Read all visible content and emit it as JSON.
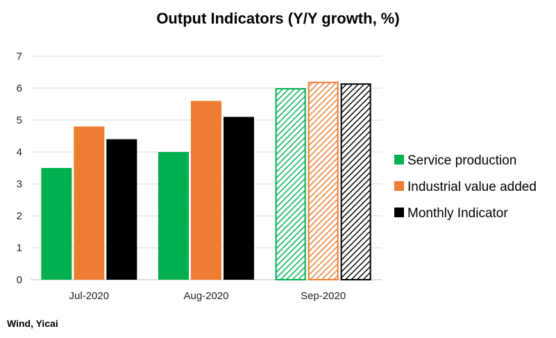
{
  "chart_data": {
    "type": "bar",
    "title": "Output Indicators (Y/Y growth, %)",
    "xlabel": "",
    "ylabel": "",
    "categories": [
      "Jul-2020",
      "Aug-2020",
      "Sep-2020"
    ],
    "ylim": [
      0,
      7
    ],
    "yticks": [
      0,
      1,
      2,
      3,
      4,
      5,
      6,
      7
    ],
    "grid": true,
    "legend_position": "right",
    "hatched_categories": [
      "Sep-2020"
    ],
    "series": [
      {
        "name": "Service production",
        "color": "#00b050",
        "values": [
          3.5,
          4.0,
          6.0
        ]
      },
      {
        "name": "Industrial value added",
        "color": "#ed7d31",
        "values": [
          4.8,
          5.6,
          6.2
        ]
      },
      {
        "name": "Monthly Indicator",
        "color": "#000000",
        "values": [
          4.4,
          5.1,
          6.15
        ]
      }
    ]
  },
  "source": "Wind, Yicai"
}
